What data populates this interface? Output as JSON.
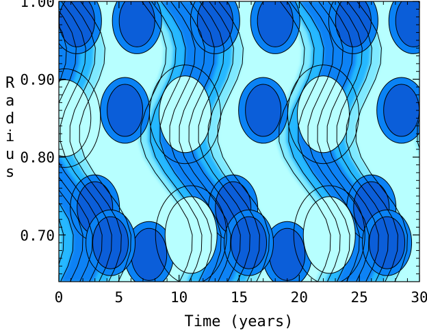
{
  "chart_data": {
    "type": "heatmap",
    "title": "",
    "xlabel": "Time (years)",
    "ylabel": "Radius",
    "xlim": [
      0,
      30
    ],
    "ylim": [
      0.64,
      1.0
    ],
    "xticks": [
      0,
      5,
      10,
      15,
      20,
      25,
      30
    ],
    "xtick_labels": [
      "0",
      "5",
      "10",
      "15",
      "20",
      "25",
      "30"
    ],
    "yticks": [
      0.7,
      0.8,
      0.9,
      1.0
    ],
    "ytick_labels": [
      "0.70",
      "0.80",
      "0.90",
      "1.00"
    ],
    "period_years": 11.5,
    "colors": {
      "level_1": "#b7ffff",
      "level_2": "#7fe9ff",
      "level_3": "#27b8ff",
      "level_4": "#0a82f5",
      "level_5": "#0b5ed9",
      "contour_line": "#000000"
    },
    "dark_blobs": [
      {
        "time": 1.5,
        "radius": 0.975
      },
      {
        "time": 6.5,
        "radius": 0.975
      },
      {
        "time": 13.0,
        "radius": 0.975
      },
      {
        "time": 18.0,
        "radius": 0.975
      },
      {
        "time": 24.5,
        "radius": 0.975
      },
      {
        "time": 29.5,
        "radius": 0.975
      },
      {
        "time": 5.5,
        "radius": 0.86
      },
      {
        "time": 17.0,
        "radius": 0.86
      },
      {
        "time": 28.5,
        "radius": 0.86
      },
      {
        "time": 3.0,
        "radius": 0.735
      },
      {
        "time": 14.5,
        "radius": 0.735
      },
      {
        "time": 26.0,
        "radius": 0.735
      },
      {
        "time": 7.5,
        "radius": 0.675
      },
      {
        "time": 19.0,
        "radius": 0.675
      },
      {
        "time": 4.3,
        "radius": 0.69
      },
      {
        "time": 15.8,
        "radius": 0.69
      },
      {
        "time": 27.3,
        "radius": 0.69
      }
    ],
    "light_blobs": [
      {
        "time": 10.5,
        "radius": 0.855
      },
      {
        "time": 22.0,
        "radius": 0.855
      },
      {
        "time": 11.0,
        "radius": 0.7
      },
      {
        "time": 22.5,
        "radius": 0.7
      },
      {
        "time": 0.5,
        "radius": 0.85
      }
    ]
  }
}
